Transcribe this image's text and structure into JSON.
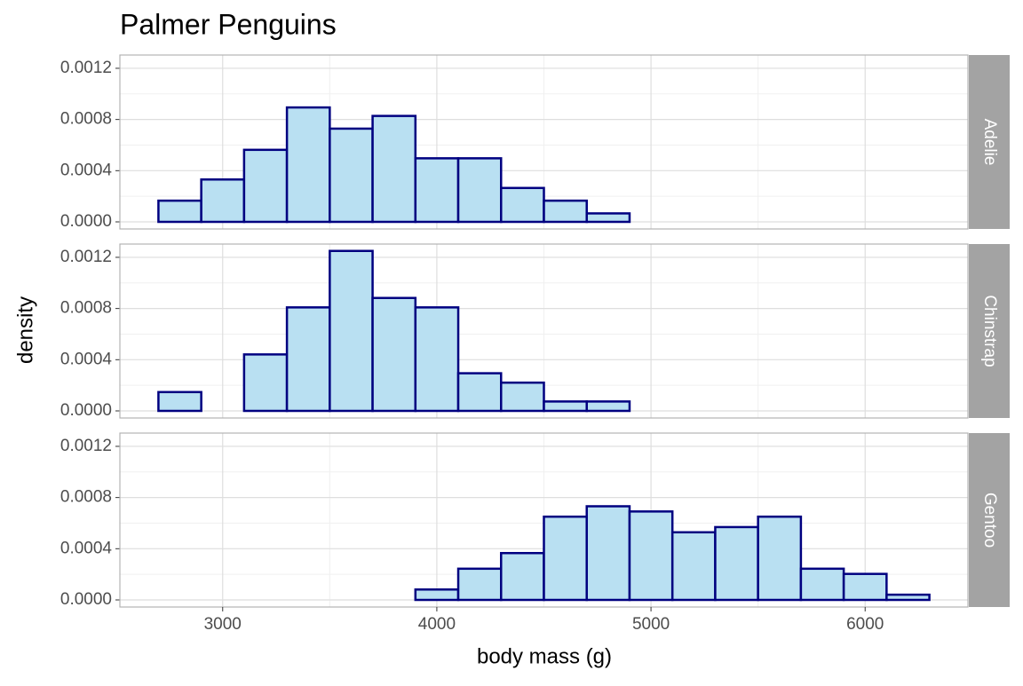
{
  "chart_data": {
    "type": "histogram",
    "title": "Palmer Penguins",
    "xlabel": "body mass (g)",
    "ylabel": "density",
    "bins": [
      2700,
      2900,
      3100,
      3300,
      3500,
      3700,
      3900,
      4100,
      4300,
      4500,
      4700,
      4900,
      5100,
      5300,
      5500,
      5700,
      5900,
      6100,
      6300
    ],
    "facets": [
      {
        "name": "Adelie",
        "values": [
          0.0001656,
          0.0003311,
          0.0005629,
          0.000894,
          0.0007285,
          0.0008278,
          0.0004967,
          0.0004967,
          0.0002649,
          0.0001656,
          6.62e-05,
          0,
          0,
          0,
          0,
          0,
          0,
          0
        ]
      },
      {
        "name": "Chinstrap",
        "values": [
          0.000147,
          0,
          0.0004412,
          0.0008088,
          0.00125,
          0.0008824,
          0.0008088,
          0.0002941,
          0.0002206,
          7.35e-05,
          7.35e-05,
          0,
          0,
          0,
          0,
          0,
          0,
          0
        ]
      },
      {
        "name": "Gentoo",
        "values": [
          0,
          0,
          0,
          0,
          0,
          0,
          8.13e-05,
          0.0002439,
          0.0003659,
          0.0006504,
          0.0007317,
          0.0006911,
          0.0005285,
          0.0005691,
          0.0006504,
          0.0002439,
          0.0002033,
          4.07e-05
        ]
      }
    ],
    "color": "#b9e0f2",
    "edgecolor": "#000080",
    "xlim": [
      2520,
      6480
    ],
    "xticks": [
      3000,
      4000,
      5000,
      6000
    ],
    "ylim": [
      -5.55e-05,
      0.0013037
    ],
    "yticks": [
      {
        "value": 0,
        "label": "0.0000"
      },
      {
        "value": 0.0004,
        "label": "0.0004"
      },
      {
        "value": 0.0008,
        "label": "0.0008"
      },
      {
        "value": 0.0012,
        "label": "0.0012"
      }
    ],
    "grid": true
  }
}
